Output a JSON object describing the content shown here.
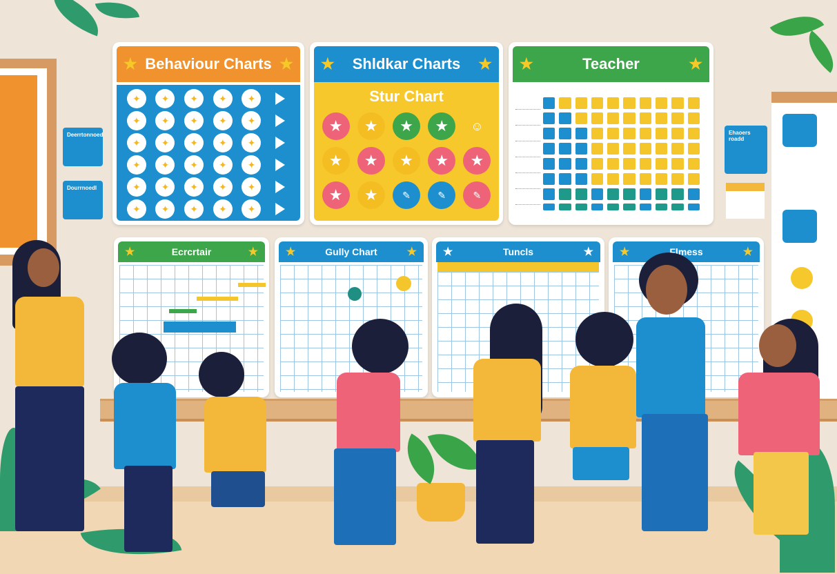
{
  "scene": {
    "description": "Illustration of children and a teacher looking at colorful behaviour and reward charts on a classroom wall",
    "colors": {
      "wall": "#eee5d8",
      "orange": "#f0922e",
      "blue": "#1d8fcf",
      "yellow": "#f6c82c",
      "green": "#3da54a",
      "pink": "#ef6378"
    }
  },
  "posters_top": [
    {
      "title": "Behaviour Charts",
      "banner_color": "#f0922e",
      "body": "grid of 6 rows x 5 circular sticker icons with arrow markers",
      "rows": 6,
      "cols": 5
    },
    {
      "title": "Shldkar Charts",
      "subtitle": "Stur Chart",
      "banner_color": "#1d8fcf",
      "body_color": "#f6c82c",
      "stickers": [
        [
          "pink",
          "yellow",
          "green",
          "green",
          ""
        ],
        [
          "yellow",
          "pink",
          "yellow",
          "pink",
          "pink"
        ],
        [
          "pink",
          "yellow",
          "blue",
          "blue",
          "pink"
        ]
      ]
    },
    {
      "title": "Teacher",
      "banner_color": "#3da54a",
      "body": "progress grid of blue and yellow squares",
      "columns": 10,
      "rows": 8,
      "blue_per_row": [
        1,
        2,
        3,
        3,
        3,
        3,
        10,
        10
      ]
    }
  ],
  "posters_bottom": [
    {
      "title": "Ecrcrtair",
      "banner_color": "#3da54a"
    },
    {
      "title": "Gully Chart",
      "banner_color": "#1d8fcf"
    },
    {
      "title": "Tuncls",
      "banner_color": "#1d8fcf",
      "header_strip_color": "#f6c82c"
    },
    {
      "title": "Flmess",
      "banner_color": "#1d8fcf"
    }
  ],
  "notes": [
    {
      "label": "Deerrtonnoed"
    },
    {
      "label": "Dourrnoedl"
    },
    {
      "label": "Ehaoers roadd"
    }
  ]
}
